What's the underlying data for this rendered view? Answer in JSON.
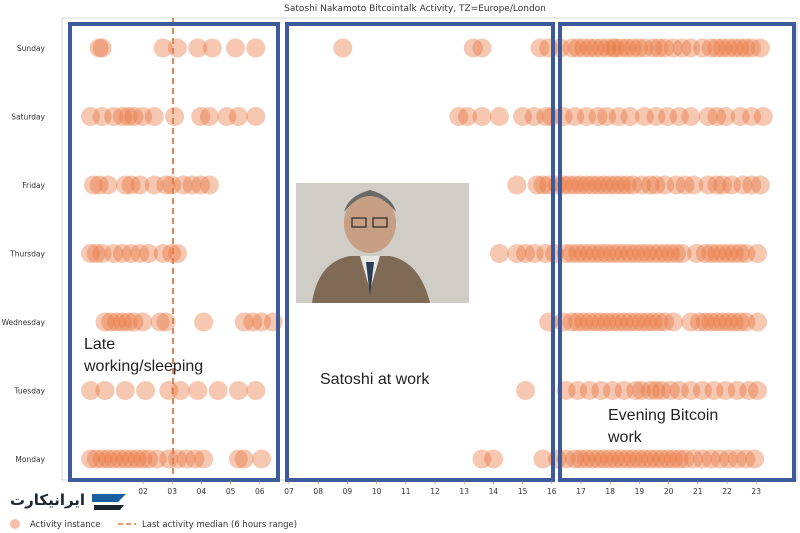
{
  "chart_data": {
    "type": "scatter",
    "title": "Satoshi Nakamoto Bitcointalk Activity, TZ=Europe/London",
    "x_ticks": [
      "02",
      "03",
      "04",
      "05",
      "06",
      "07",
      "08",
      "09",
      "10",
      "11",
      "12",
      "13",
      "14",
      "15",
      "16",
      "17",
      "18",
      "19",
      "20",
      "21",
      "22",
      "23"
    ],
    "categories": [
      "Sunday",
      "Saturday",
      "Friday",
      "Thursday",
      "Wednesday",
      "Tuesday",
      "Monday"
    ],
    "xlim": [
      -0.2,
      24.0
    ],
    "median_line_x": 3.0,
    "point_color": "#e8743b",
    "box_color": "#3d5a9a",
    "median_color": "#e07a43",
    "series": [
      {
        "category": "Sunday",
        "x": [
          0.8,
          0.9,
          3.0,
          3.5,
          4.2,
          4.7,
          5.5,
          6.2,
          9.2,
          13.7,
          14.0,
          16.0,
          16.3,
          16.7,
          17.1,
          17.3,
          17.5,
          17.7,
          17.9,
          18.1,
          18.3,
          18.5,
          18.6,
          18.8,
          19.0,
          19.2,
          19.4,
          19.6,
          19.9,
          20.1,
          20.3,
          20.6,
          20.9,
          21.2,
          21.6,
          21.9,
          22.1,
          22.3,
          22.5,
          22.7,
          22.9,
          23.1,
          23.3,
          23.6
        ]
      },
      {
        "category": "Saturday",
        "x": [
          0.5,
          0.9,
          1.3,
          1.6,
          1.8,
          2.0,
          2.3,
          2.7,
          3.4,
          4.3,
          4.6,
          5.2,
          5.6,
          6.2,
          13.2,
          13.5,
          14.0,
          14.6,
          15.4,
          15.8,
          16.2,
          16.4,
          16.8,
          17.2,
          17.6,
          18.0,
          18.3,
          18.7,
          19.1,
          19.6,
          20.0,
          20.4,
          20.8,
          21.2,
          21.8,
          22.1,
          22.4,
          22.9,
          23.3,
          23.7
        ]
      },
      {
        "category": "Friday",
        "x": [
          0.6,
          0.8,
          1.1,
          1.7,
          1.9,
          2.2,
          2.7,
          3.1,
          3.3,
          3.7,
          4.0,
          4.3,
          4.6,
          15.2,
          15.9,
          16.1,
          16.3,
          16.6,
          16.8,
          17.0,
          17.2,
          17.4,
          17.6,
          17.8,
          18.0,
          18.2,
          18.4,
          18.6,
          18.8,
          19.0,
          19.2,
          19.5,
          19.8,
          20.0,
          20.3,
          20.7,
          21.0,
          21.3,
          21.8,
          22.1,
          22.3,
          22.6,
          23.0,
          23.3,
          23.6
        ]
      },
      {
        "category": "Thursday",
        "x": [
          0.5,
          0.7,
          0.9,
          1.3,
          1.6,
          1.9,
          2.2,
          2.5,
          3.0,
          3.3,
          3.5,
          14.6,
          15.2,
          15.5,
          15.8,
          16.2,
          16.5,
          16.9,
          17.1,
          17.3,
          17.5,
          17.7,
          17.9,
          18.1,
          18.3,
          18.5,
          18.7,
          18.9,
          19.1,
          19.3,
          19.5,
          19.7,
          19.9,
          20.1,
          20.3,
          20.5,
          20.7,
          20.9,
          21.4,
          21.7,
          21.9,
          22.1,
          22.3,
          22.5,
          22.7,
          22.9,
          23.1,
          23.5
        ]
      },
      {
        "category": "Wednesday",
        "x": [
          1.0,
          1.2,
          1.4,
          1.6,
          1.8,
          2.0,
          2.3,
          2.9,
          3.1,
          4.4,
          5.8,
          6.1,
          6.4,
          6.8,
          16.3,
          16.8,
          17.1,
          17.3,
          17.5,
          17.7,
          17.9,
          18.1,
          18.3,
          18.5,
          18.7,
          18.9,
          19.1,
          19.3,
          19.5,
          19.7,
          19.9,
          20.1,
          20.3,
          20.6,
          21.2,
          21.5,
          21.7,
          21.9,
          22.1,
          22.3,
          22.5,
          22.7,
          22.9,
          23.1,
          23.5
        ]
      },
      {
        "category": "Tuesday",
        "x": [
          0.5,
          1.0,
          1.7,
          2.4,
          3.2,
          3.6,
          4.2,
          4.9,
          5.6,
          6.2,
          15.5,
          16.9,
          17.3,
          17.7,
          18.1,
          18.5,
          18.9,
          19.3,
          19.5,
          19.8,
          20.0,
          20.2,
          20.5,
          20.8,
          21.2,
          21.6,
          22.0,
          22.4,
          22.8,
          23.2,
          23.5
        ]
      },
      {
        "category": "Monday",
        "x": [
          0.5,
          0.7,
          0.9,
          1.1,
          1.3,
          1.5,
          1.7,
          1.9,
          2.1,
          2.3,
          2.5,
          2.8,
          3.2,
          3.5,
          3.8,
          4.1,
          4.4,
          5.6,
          5.8,
          6.4,
          14.0,
          14.4,
          16.1,
          16.6,
          16.9,
          17.2,
          17.4,
          17.6,
          17.8,
          18.0,
          18.2,
          18.4,
          18.6,
          18.8,
          19.0,
          19.2,
          19.4,
          19.6,
          19.8,
          20.0,
          20.2,
          20.4,
          20.6,
          20.8,
          21.0,
          21.3,
          21.6,
          21.9,
          22.2,
          22.5,
          22.8,
          23.1,
          23.4
        ]
      }
    ],
    "regions": [
      {
        "x_range": [
          0.0,
          6.8
        ],
        "label": "Late\nworking/sleeping"
      },
      {
        "x_range": [
          7.0,
          16.3
        ],
        "label": "Satoshi at work"
      },
      {
        "x_range": [
          16.5,
          24.0
        ],
        "label": "Evening Bitcoin\nwork"
      }
    ],
    "legend": [
      {
        "label": "Activity instance",
        "marker": "circle"
      },
      {
        "label": "Last activity median (6 hours range)",
        "marker": "dashed-line"
      }
    ]
  },
  "watermark": {
    "text": "ایرانیکارت"
  }
}
